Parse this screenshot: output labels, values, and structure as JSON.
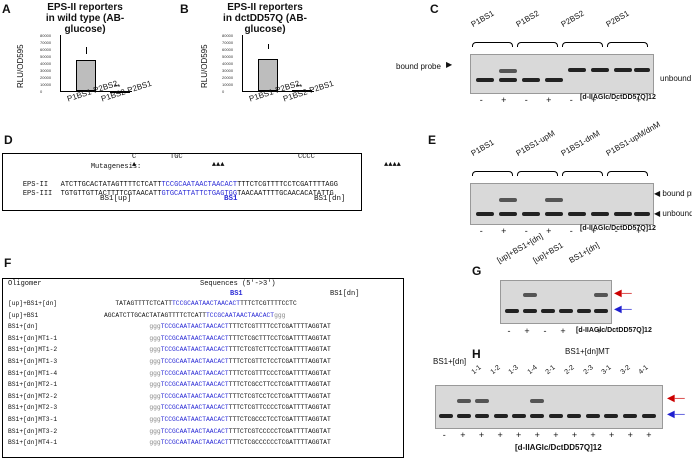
{
  "panels": {
    "A": {
      "label": "A",
      "title_line1": "EPS-II reporters",
      "title_line2": "in wild type (AB-glucose)",
      "ylabel": "RLU/OD595",
      "chart_data": {
        "type": "bar",
        "categories": [
          "P1BS1-P2BS2",
          "P1BS2-P2BS1"
        ],
        "values": [
          45000,
          500
        ],
        "ylim": [
          0,
          80000
        ],
        "yticks": [
          "0",
          "10000",
          "20000",
          "30000",
          "40000",
          "50000",
          "60000",
          "70000",
          "80000"
        ],
        "annotation": "**"
      }
    },
    "B": {
      "label": "B",
      "title_line1": "EPS-II reporters",
      "title_line2": "in dctDD57Q (AB-glucose)",
      "ylabel": "RLU/OD595",
      "chart_data": {
        "type": "bar",
        "categories": [
          "P1BS1-P2BS2",
          "P1BS2-P2BS1"
        ],
        "values": [
          46000,
          1000
        ],
        "ylim": [
          0,
          80000
        ],
        "yticks": [
          "0",
          "10000",
          "20000",
          "30000",
          "40000",
          "50000",
          "60000",
          "70000",
          "80000"
        ],
        "annotation": "**"
      }
    },
    "C": {
      "label": "C",
      "lanes": [
        "P1BS1",
        "P1BS2",
        "P2BS2",
        "P2BS1"
      ],
      "bound_label": "bound probe",
      "unbound_label": "unbound probes",
      "signs": [
        "-",
        "+",
        "-",
        "+",
        "-",
        "+",
        "-",
        "+"
      ],
      "reagent": "[d-IIAGlc/DctDD57Q]12"
    },
    "D": {
      "label": "D",
      "mutagenesis_label": "Mutagenesis:",
      "mut_c": "C",
      "mut_tgc": "TGC",
      "mut_cccc": "CCCC",
      "row1_name": "EPS-II",
      "row1_a": "ATCTTGCACTATAGTTTTCTCATT",
      "row1_b": "TCCGCAATAACTAACACT",
      "row1_c": "TTTCTCGTTTTCCTCGATTTTAGG",
      "row2_name": "EPS-III",
      "row2_a": "TGTGTTGTTACTTTTCGTAACATT",
      "row2_b": "GTGCATTATTCTGAGTGG",
      "row2_c": "TAACAATTTTGCAACACATATTG",
      "bs1up": "BS1[up]",
      "bs1": "BS1",
      "bs1dn": "BS1[dn]"
    },
    "E": {
      "label": "E",
      "lanes": [
        "P1BS1",
        "P1BS1-upM",
        "P1BS1-dnM",
        "P1BS1-upM/dnM"
      ],
      "bound_label": "bound probes",
      "unbound_label": "unbound probes",
      "signs": [
        "-",
        "+",
        "-",
        "+",
        "-",
        "+",
        "-",
        "+"
      ],
      "reagent": "[d-IIAGlc/DctDD57Q]12"
    },
    "F": {
      "label": "F",
      "col1": "Oligomer",
      "col2": "Sequences (5'->3')",
      "bs1": "BS1",
      "bs1dn": "BS1[dn]",
      "rows": [
        {
          "name": "[up]+BS1+[dn]",
          "pre": "   TATAGTTTTCTCATT",
          "blue": "TCCGCAATAACTAACACT",
          "post": "TTTCTCGTTTTCCTC"
        },
        {
          "name": "[up]+BS1",
          "pre": "AGCATCTTGCACTATAGTTTTCTCATT",
          "blue": "TCCGCAATAACTAACACT",
          "post": "ggg"
        },
        {
          "name": "BS1+[dn]",
          "pre": "            ggg",
          "blue": "TCCGCAATAACTAACACT",
          "post": "TTTCTCGTTTTCCTCGATTTTAGGTAT"
        },
        {
          "name": "BS1+[dn]MT1-1",
          "pre": "            ggg",
          "blue": "TCCGCAATAACTAACACT",
          "post": "TTTCTCGCTTTCCTCGATTTTAGGTAT"
        },
        {
          "name": "BS1+[dn]MT1-2",
          "pre": "            ggg",
          "blue": "TCCGCAATAACTAACACT",
          "post": "TTTCTCGTCTTCCTCGATTTTAGGTAT"
        },
        {
          "name": "BS1+[dn]MT1-3",
          "pre": "            ggg",
          "blue": "TCCGCAATAACTAACACT",
          "post": "TTTCTCGTTCTCCTCGATTTTAGGTAT"
        },
        {
          "name": "BS1+[dn]MT1-4",
          "pre": "            ggg",
          "blue": "TCCGCAATAACTAACACT",
          "post": "TTTCTCGTTTCCCTCGATTTTAGGTAT"
        },
        {
          "name": "BS1+[dn]MT2-1",
          "pre": "            ggg",
          "blue": "TCCGCAATAACTAACACT",
          "post": "TTTCTCGCCTTCCTCGATTTTAGGTAT"
        },
        {
          "name": "BS1+[dn]MT2-2",
          "pre": "            ggg",
          "blue": "TCCGCAATAACTAACACT",
          "post": "TTTCTCGTCCTCCTCGATTTTAGGTAT"
        },
        {
          "name": "BS1+[dn]MT2-3",
          "pre": "            ggg",
          "blue": "TCCGCAATAACTAACACT",
          "post": "TTTCTCGTTCCCCTCGATTTTAGGTAT"
        },
        {
          "name": "BS1+[dn]MT3-1",
          "pre": "            ggg",
          "blue": "TCCGCAATAACTAACACT",
          "post": "TTTCTCGCCCTCCTCGATTTTAGGTAT"
        },
        {
          "name": "BS1+[dn]MT3-2",
          "pre": "            ggg",
          "blue": "TCCGCAATAACTAACACT",
          "post": "TTTCTCGTCCCCCTCGATTTTAGGTAT"
        },
        {
          "name": "BS1+[dn]MT4-1",
          "pre": "            ggg",
          "blue": "TCCGCAATAACTAACACT",
          "post": "TTTCTCGCCCCCCTCGATTTTAGGTAT"
        }
      ]
    },
    "G": {
      "label": "G",
      "lanes": [
        "[up]+BS1+[dn]",
        "[up]+BS1",
        "BS1+[dn]"
      ],
      "signs": [
        "-",
        "+",
        "-",
        "+",
        "-",
        "+"
      ],
      "reagent": "[d-IIAGlc/DctDD57Q]12"
    },
    "H": {
      "label": "H",
      "lane_first": "BS1+[dn]",
      "lane_group": "BS1+[dn]MT",
      "sub_lanes": [
        "1-1",
        "1-2",
        "1-3",
        "1-4",
        "2-1",
        "2-2",
        "2-3",
        "3-1",
        "3-2",
        "4-1"
      ],
      "signs": [
        "-",
        "+",
        "+",
        "+",
        "+",
        "+",
        "+",
        "+",
        "+",
        "+",
        "+",
        "+"
      ],
      "reagent": "[d-IIAGlc/DctDD57Q]12"
    }
  }
}
